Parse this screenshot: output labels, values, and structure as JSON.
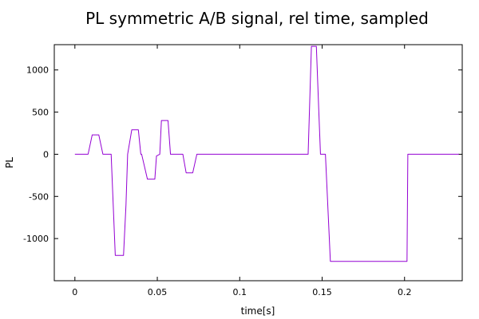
{
  "chart_data": {
    "type": "line",
    "title": "PL symmetric A/B signal, rel time, sampled",
    "xlabel": "time[s]",
    "ylabel": "PL",
    "xlim": [
      -0.0125,
      0.235
    ],
    "ylim": [
      -1500,
      1300
    ],
    "xticks": [
      0,
      0.05,
      0.1,
      0.15,
      0.2
    ],
    "xtick_labels": [
      "0",
      "0.05",
      "0.1",
      "0.15",
      "0.2"
    ],
    "yticks": [
      -1000,
      -500,
      0,
      500,
      1000
    ],
    "ytick_labels": [
      "-1000",
      "-500",
      "0",
      "500",
      "1000"
    ],
    "grid": false,
    "legend": "none",
    "colors": {
      "line": "#9400d3",
      "axes": "#000000"
    },
    "series": [
      {
        "x": [
          0,
          0.008,
          0.0105,
          0.0145,
          0.017,
          0.022,
          0.0245,
          0.0255,
          0.0295,
          0.031,
          0.032,
          0.0345,
          0.0385,
          0.04,
          0.0405,
          0.044,
          0.0485,
          0.0495,
          0.0515,
          0.0525,
          0.0565,
          0.058,
          0.0655,
          0.0675,
          0.0715,
          0.074,
          0.08,
          0.1,
          0.14,
          0.1415,
          0.1435,
          0.1465,
          0.148,
          0.149,
          0.152,
          0.155,
          0.17,
          0.185,
          0.2015,
          0.202,
          0.21,
          0.22,
          0.233
        ],
        "y": [
          0,
          0,
          230,
          230,
          0,
          0,
          -1200,
          -1200,
          -1200,
          -600,
          0,
          290,
          290,
          0,
          0,
          -295,
          -295,
          -20,
          0,
          400,
          400,
          0,
          0,
          -220,
          -220,
          0,
          0,
          0,
          0,
          0,
          1280,
          1280,
          500,
          0,
          0,
          -1270,
          -1270,
          -1270,
          -1270,
          0,
          0,
          0,
          0
        ]
      }
    ]
  }
}
